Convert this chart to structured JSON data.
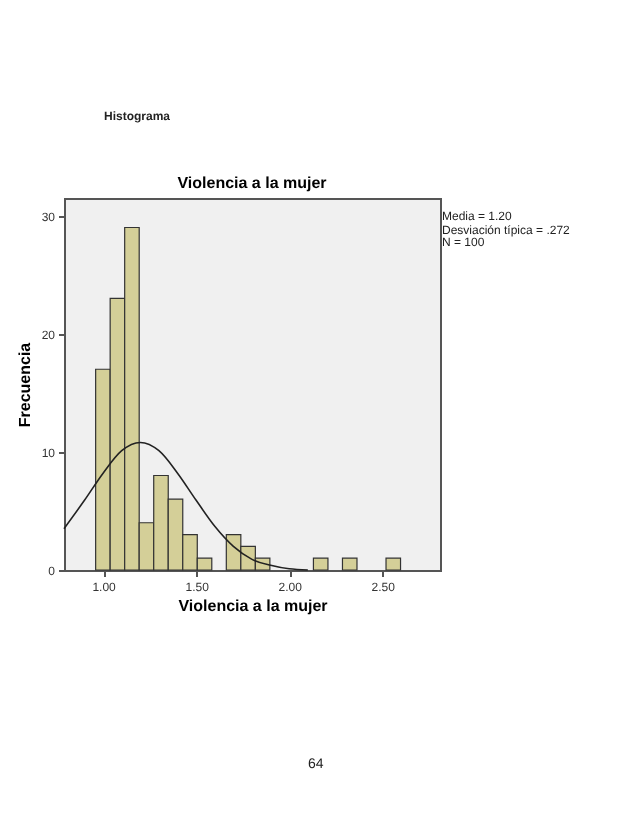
{
  "chart_data": {
    "type": "histogram",
    "title": "Violencia a la mujer",
    "xlabel": "Violencia a la mujer",
    "ylabel": "Frecuencia",
    "annotations": [
      "Histograma",
      "Media = 1.20",
      "Desviación típica = .272",
      "N = 100",
      "64"
    ],
    "bins": [
      0.96,
      1.038,
      1.116,
      1.194,
      1.272,
      1.35,
      1.428,
      1.506,
      1.584,
      1.662,
      1.74,
      1.818,
      1.896,
      1.974,
      2.052,
      2.13,
      2.208,
      2.286,
      2.364,
      2.442,
      2.52,
      2.598
    ],
    "values": [
      17,
      23,
      29,
      4,
      8,
      6,
      3,
      1,
      0,
      3,
      2,
      1,
      0,
      0,
      0,
      1,
      0,
      1,
      0,
      0,
      1
    ],
    "color": "#d4cf98",
    "series": [
      {
        "type": "line",
        "color": "#222222",
        "x": [
          0.79,
          0.9,
          1.0,
          1.1,
          1.2,
          1.3,
          1.4,
          1.5,
          1.6,
          1.7,
          1.8,
          1.9,
          2.0,
          2.1
        ],
        "values": [
          3.5,
          5.9,
          8.2,
          10.1,
          10.8,
          10.1,
          8.2,
          5.9,
          3.7,
          2.0,
          0.9,
          0.4,
          0.1,
          0.0
        ]
      }
    ],
    "xlim": [
      0.79,
      2.81
    ],
    "xticks": [
      {
        "value": 1,
        "label": "1.00"
      },
      {
        "value": 1.5,
        "label": "1.50"
      },
      {
        "value": 2,
        "label": "2.00"
      },
      {
        "value": 2.5,
        "label": "2.50"
      }
    ],
    "ylim": [
      0,
      31.5
    ],
    "yticks": [
      0,
      10,
      20,
      30
    ],
    "grid": false
  }
}
